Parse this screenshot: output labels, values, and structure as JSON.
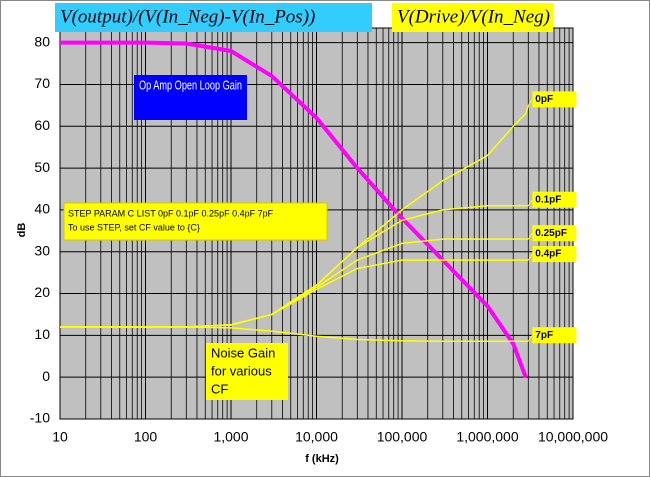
{
  "chart_data": {
    "type": "line",
    "titles": [
      "V(output)/(V(In_Neg)-V(In_Pos))",
      "V(Drive)/V(In_Neg)"
    ],
    "xlabel": "f (kHz)",
    "ylabel": "dB",
    "log_x": true,
    "grid": true,
    "minor_grid": true,
    "xlim": [
      10,
      10000000
    ],
    "ylim": [
      -10,
      83.5
    ],
    "xticks": [
      10,
      100,
      {
        "value": 1000,
        "label": "1,000"
      },
      {
        "value": 10000,
        "label": "10,000"
      },
      {
        "value": 100000,
        "label": "100,000"
      },
      {
        "value": 1000000,
        "label": "1,000,000"
      },
      {
        "value": 10000000,
        "label": "10,000,000"
      }
    ],
    "yticks": [
      -10,
      0,
      10,
      20,
      30,
      40,
      50,
      60,
      70,
      80
    ],
    "x": [
      10,
      100,
      300,
      1000,
      3000,
      10000,
      30000,
      100000,
      300000,
      1000000,
      2000000,
      2800000,
      3000000
    ],
    "series": [
      {
        "name": "Op Amp Open Loop Gain",
        "color": "#ff00ff",
        "values": [
          80,
          80,
          79.8,
          78,
          72,
          62,
          50,
          38,
          28,
          17,
          8,
          0,
          null
        ]
      },
      {
        "name": "0pF",
        "color": "#ffff00",
        "values": [
          12,
          12,
          12,
          12.5,
          15,
          22,
          31,
          40,
          47,
          53,
          60,
          63,
          65
        ]
      },
      {
        "name": "0.1pF",
        "color": "#ffff00",
        "values": [
          12,
          12,
          12,
          12.5,
          15,
          22,
          31,
          37.5,
          40,
          41,
          41,
          41,
          41
        ]
      },
      {
        "name": "0.25pF",
        "color": "#ffff00",
        "values": [
          12,
          12,
          12,
          12.5,
          15,
          21.5,
          28,
          32,
          33,
          33,
          33,
          33,
          33
        ]
      },
      {
        "name": "0.4pF",
        "color": "#ffff00",
        "values": [
          12,
          12,
          12,
          12.5,
          15,
          21,
          26,
          28,
          28,
          28,
          28,
          28,
          28
        ]
      },
      {
        "name": "7pF",
        "color": "#ffff00",
        "values": [
          12,
          12,
          12,
          11.8,
          11,
          9.8,
          9,
          8.7,
          8.6,
          8.6,
          8.6,
          8.6,
          8.6
        ]
      }
    ],
    "annotations": [
      "STEP PARAM C LIST 0pF 0.1pF 0.25pF 0.4pF 7pF",
      "To use STEP, set CF value to {C}",
      "Noise Gain",
      "for various",
      "CF"
    ]
  }
}
